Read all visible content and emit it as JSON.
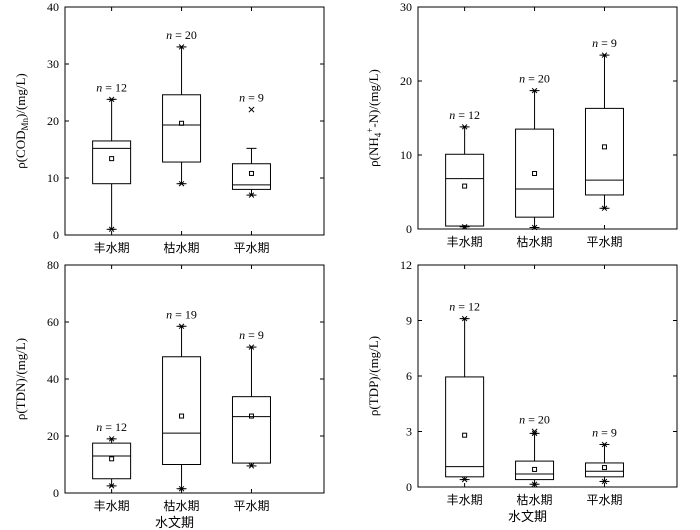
{
  "chart_data": [
    {
      "type": "box",
      "ylabel_parts": [
        "ρ(COD",
        "Mn",
        ")/(mg/L)"
      ],
      "ylim": [
        0,
        40
      ],
      "yticks": [
        "0",
        "10",
        "20",
        "30",
        "40"
      ],
      "categories": [
        "丰水期",
        "枯水期",
        "平水期"
      ],
      "xlabel": "",
      "boxes": [
        {
          "category": "丰水期",
          "n_label": "n = 12",
          "min": 1,
          "q1": 9,
          "median": 15.2,
          "q3": 16.5,
          "max": 23.8,
          "mean": 13.4,
          "outliers_x": [],
          "max_marker": "star",
          "min_marker": "star"
        },
        {
          "category": "枯水期",
          "n_label": "n = 20",
          "min": 9,
          "q1": 12.8,
          "median": 19.3,
          "q3": 24.6,
          "max": 33,
          "mean": 19.6,
          "outliers_x": [],
          "max_marker": "star",
          "min_marker": "star"
        },
        {
          "category": "平水期",
          "n_label": "n = 9",
          "min": 7,
          "q1": 8,
          "median": 8.8,
          "q3": 12.5,
          "max": 15.2,
          "mean": 10.8,
          "outliers_x": [
            22
          ],
          "max_marker": "none",
          "min_marker": "star"
        }
      ]
    },
    {
      "type": "box",
      "ylabel_parts": [
        "ρ(NH",
        "4",
        "+",
        "-N)/(mg/L)"
      ],
      "ylim": [
        0,
        30
      ],
      "yticks": [
        "0",
        "10",
        "20",
        "30"
      ],
      "categories": [
        "丰水期",
        "枯水期",
        "平水期"
      ],
      "xlabel": "",
      "boxes": [
        {
          "category": "丰水期",
          "n_label": "n = 12",
          "min": 0.3,
          "q1": 0.4,
          "median": 6.8,
          "q3": 10.1,
          "max": 13.8,
          "mean": 5.8,
          "outliers_x": [],
          "max_marker": "star",
          "min_marker": "star"
        },
        {
          "category": "枯水期",
          "n_label": "n = 20",
          "min": 0.2,
          "q1": 1.6,
          "median": 5.4,
          "q3": 13.5,
          "max": 18.7,
          "mean": 7.5,
          "outliers_x": [],
          "max_marker": "star",
          "min_marker": "star"
        },
        {
          "category": "平水期",
          "n_label": "n = 9",
          "min": 2.8,
          "q1": 4.6,
          "median": 6.6,
          "q3": 16.3,
          "max": 23.5,
          "mean": 11.1,
          "outliers_x": [],
          "max_marker": "star",
          "min_marker": "star"
        }
      ]
    },
    {
      "type": "box",
      "ylabel_parts": [
        "ρ(TDN)/(mg/L)"
      ],
      "ylim": [
        0,
        80
      ],
      "yticks": [
        "0",
        "20",
        "40",
        "60",
        "80"
      ],
      "categories": [
        "丰水期",
        "枯水期",
        "平水期"
      ],
      "xlabel": "水文期",
      "boxes": [
        {
          "category": "丰水期",
          "n_label": "n = 12",
          "min": 2.5,
          "q1": 5,
          "median": 13,
          "q3": 17.5,
          "max": 19,
          "mean": 12,
          "outliers_x": [],
          "max_marker": "star",
          "min_marker": "star"
        },
        {
          "category": "枯水期",
          "n_label": "n = 19",
          "min": 1.5,
          "q1": 10,
          "median": 21,
          "q3": 47.8,
          "max": 58.5,
          "mean": 27,
          "outliers_x": [],
          "max_marker": "star",
          "min_marker": "star"
        },
        {
          "category": "平水期",
          "n_label": "n = 9",
          "min": 9.5,
          "q1": 10.5,
          "median": 26.8,
          "q3": 33.8,
          "max": 51.2,
          "mean": 27,
          "outliers_x": [],
          "max_marker": "star",
          "min_marker": "star"
        }
      ]
    },
    {
      "type": "box",
      "ylabel_parts": [
        "ρ(TDP)/(mg/L)"
      ],
      "ylim": [
        0,
        12
      ],
      "yticks": [
        "0",
        "3",
        "6",
        "9",
        "12"
      ],
      "categories": [
        "丰水期",
        "枯水期",
        "平水期"
      ],
      "xlabel": "水文期",
      "boxes": [
        {
          "category": "丰水期",
          "n_label": "n = 12",
          "min": 0.4,
          "q1": 0.55,
          "median": 1.1,
          "q3": 5.95,
          "max": 9.1,
          "mean": 2.8,
          "outliers_x": [],
          "max_marker": "star",
          "min_marker": "star"
        },
        {
          "category": "枯水期",
          "n_label": "n = 20",
          "min": 0.15,
          "q1": 0.4,
          "median": 0.7,
          "q3": 1.4,
          "max": 2.9,
          "mean": 0.95,
          "outliers_x": [
            3.0
          ],
          "max_marker": "star",
          "min_marker": "star"
        },
        {
          "category": "平水期",
          "n_label": "n = 9",
          "min": 0.3,
          "q1": 0.55,
          "median": 0.85,
          "q3": 1.3,
          "max": 2.3,
          "mean": 1.05,
          "outliers_x": [],
          "max_marker": "star",
          "min_marker": "star"
        }
      ]
    }
  ]
}
